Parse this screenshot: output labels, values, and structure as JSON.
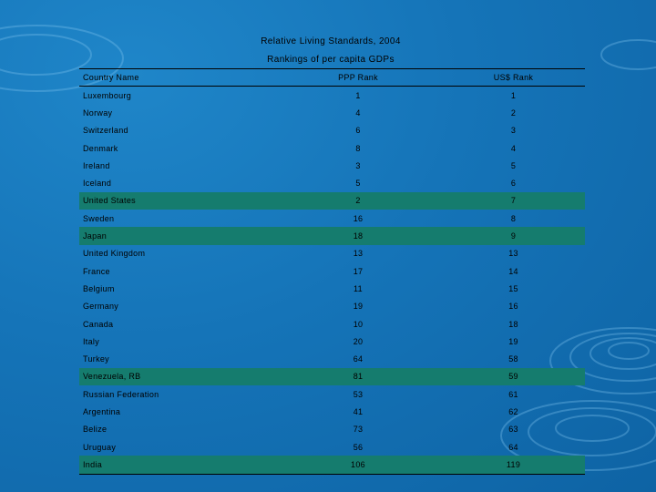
{
  "title": "Relative Living Standards, 2004",
  "subtitle": "Rankings of per capita GDPs",
  "columns": [
    "Country Name",
    "PPP Rank",
    "US$ Rank"
  ],
  "rows": [
    {
      "country": "Luxembourg",
      "ppp": "1",
      "usd": "1",
      "highlight": false
    },
    {
      "country": "Norway",
      "ppp": "4",
      "usd": "2",
      "highlight": false
    },
    {
      "country": "Switzerland",
      "ppp": "6",
      "usd": "3",
      "highlight": false
    },
    {
      "country": "Denmark",
      "ppp": "8",
      "usd": "4",
      "highlight": false
    },
    {
      "country": "Ireland",
      "ppp": "3",
      "usd": "5",
      "highlight": false
    },
    {
      "country": "Iceland",
      "ppp": "5",
      "usd": "6",
      "highlight": false
    },
    {
      "country": "United States",
      "ppp": "2",
      "usd": "7",
      "highlight": true
    },
    {
      "country": "Sweden",
      "ppp": "16",
      "usd": "8",
      "highlight": false
    },
    {
      "country": "Japan",
      "ppp": "18",
      "usd": "9",
      "highlight": true
    },
    {
      "country": "United Kingdom",
      "ppp": "13",
      "usd": "13",
      "highlight": false
    },
    {
      "country": "France",
      "ppp": "17",
      "usd": "14",
      "highlight": false
    },
    {
      "country": "Belgium",
      "ppp": "11",
      "usd": "15",
      "highlight": false
    },
    {
      "country": "Germany",
      "ppp": "19",
      "usd": "16",
      "highlight": false
    },
    {
      "country": "Canada",
      "ppp": "10",
      "usd": "18",
      "highlight": false
    },
    {
      "country": "Italy",
      "ppp": "20",
      "usd": "19",
      "highlight": false
    },
    {
      "country": "Turkey",
      "ppp": "64",
      "usd": "58",
      "highlight": false
    },
    {
      "country": "Venezuela, RB",
      "ppp": "81",
      "usd": "59",
      "highlight": true
    },
    {
      "country": "Russian Federation",
      "ppp": "53",
      "usd": "61",
      "highlight": false
    },
    {
      "country": "Argentina",
      "ppp": "41",
      "usd": "62",
      "highlight": false
    },
    {
      "country": "Belize",
      "ppp": "73",
      "usd": "63",
      "highlight": false
    },
    {
      "country": "Uruguay",
      "ppp": "56",
      "usd": "64",
      "highlight": false
    },
    {
      "country": "India",
      "ppp": "106",
      "usd": "119",
      "highlight": true
    }
  ],
  "colors": {
    "background": "#1574b8",
    "highlight_row": "#157c6e"
  }
}
